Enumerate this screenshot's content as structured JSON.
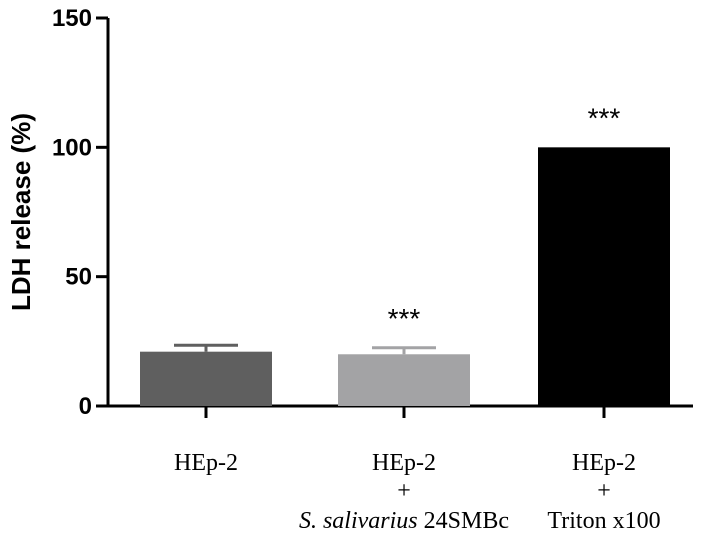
{
  "chart_data": {
    "type": "bar",
    "title": "",
    "xlabel": "",
    "ylabel": "LDH release (%)",
    "ylim": [
      0,
      150
    ],
    "yticks": [
      0,
      50,
      100,
      150
    ],
    "categories": [
      {
        "lines": [
          "HEp-2"
        ],
        "italic_prefix": "",
        "suffix": ""
      },
      {
        "lines": [
          "HEp-2",
          "+"
        ],
        "italic_prefix": "S. salivarius",
        "suffix": " 24SMBc"
      },
      {
        "lines": [
          "HEp-2",
          "+"
        ],
        "italic_prefix": "",
        "suffix": "Triton x100"
      }
    ],
    "values": [
      21,
      20,
      100
    ],
    "errors": [
      2.5,
      2.5,
      0
    ],
    "annotations": [
      "",
      "***",
      "***"
    ],
    "colors": [
      "#5f5f5f",
      "#a3a3a5",
      "#000000"
    ]
  }
}
